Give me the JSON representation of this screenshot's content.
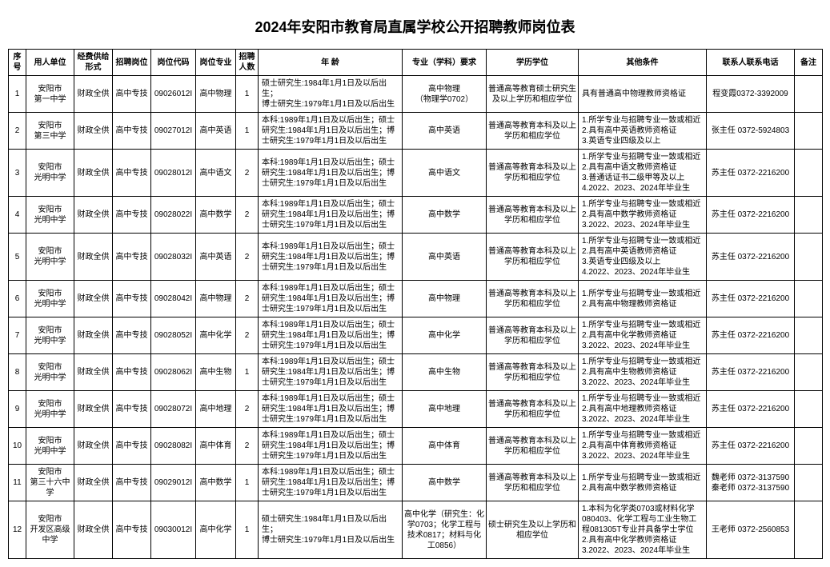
{
  "title": "2024年安阳市教育局直属学校公开招聘教师岗位表",
  "title_fontsize": "18px",
  "body_fontsize": "10px",
  "columns": [
    "序号",
    "用人单位",
    "经费供给形式",
    "招聘岗位",
    "岗位代码",
    "岗位专业",
    "招聘人数",
    "年 龄",
    "专业（学科）要求",
    "学历学位",
    "其他条件",
    "联系人联系电话",
    "备注"
  ],
  "rows": [
    {
      "seq": "1",
      "unit": "安阳市\n第一中学",
      "fund": "财政全供",
      "post": "高中专技",
      "code": "09026012I",
      "major": "高中物理",
      "num": "1",
      "age": "硕士研究生:1984年1月1日及以后出生；\n博士研究生:1979年1月1日及以后出生",
      "req": "高中物理\n（物理学0702）",
      "edu": "普通高等教育硕士研究生及以上学历和相应学位",
      "other": "具有普通高中物理教师资格证",
      "contact": "程变霞0372-3392009",
      "remark": ""
    },
    {
      "seq": "2",
      "unit": "安阳市\n第三中学",
      "fund": "财政全供",
      "post": "高中专技",
      "code": "09027012I",
      "major": "高中英语",
      "num": "1",
      "age": "本科:1989年1月1日及以后出生；硕士研究生:1984年1月1日及以后出生；博士研究生:1979年1月1日及以后出生",
      "req": "高中英语",
      "edu": "普通高等教育本科及以上学历和相应学位",
      "other": "1.所学专业与招聘专业一致或相近\n2.具有高中英语教师资格证\n3.英语专业四级及以上",
      "contact": "张主任 0372-5924803",
      "remark": ""
    },
    {
      "seq": "3",
      "unit": "安阳市\n光明中学",
      "fund": "财政全供",
      "post": "高中专技",
      "code": "09028012I",
      "major": "高中语文",
      "num": "2",
      "age": "本科:1989年1月1日及以后出生；硕士研究生:1984年1月1日及以后出生；博士研究生:1979年1月1日及以后出生",
      "req": "高中语文",
      "edu": "普通高等教育本科及以上学历和相应学位",
      "other": "1.所学专业与招聘专业一致或相近\n2.具有高中语文教师资格证\n3.普通话证书二级甲等及以上\n4.2022、2023、2024年毕业生",
      "contact": "苏主任 0372-2216200",
      "remark": ""
    },
    {
      "seq": "4",
      "unit": "安阳市\n光明中学",
      "fund": "财政全供",
      "post": "高中专技",
      "code": "09028022I",
      "major": "高中数学",
      "num": "2",
      "age": "本科:1989年1月1日及以后出生；硕士研究生:1984年1月1日及以后出生；博士研究生:1979年1月1日及以后出生",
      "req": "高中数学",
      "edu": "普通高等教育本科及以上学历和相应学位",
      "other": "1.所学专业与招聘专业一致或相近\n2.具有高中数学教师资格证\n3.2022、2023、2024年毕业生",
      "contact": "苏主任 0372-2216200",
      "remark": ""
    },
    {
      "seq": "5",
      "unit": "安阳市\n光明中学",
      "fund": "财政全供",
      "post": "高中专技",
      "code": "09028032I",
      "major": "高中英语",
      "num": "2",
      "age": "本科:1989年1月1日及以后出生；硕士研究生:1984年1月1日及以后出生；博士研究生:1979年1月1日及以后出生",
      "req": "高中英语",
      "edu": "普通高等教育本科及以上学历和相应学位",
      "other": "1.所学专业与招聘专业一致或相近\n2.具有高中英语教师资格证\n3.英语专业四级及以上\n4.2022、2023、2024年毕业生",
      "contact": "苏主任 0372-2216200",
      "remark": ""
    },
    {
      "seq": "6",
      "unit": "安阳市\n光明中学",
      "fund": "财政全供",
      "post": "高中专技",
      "code": "09028042I",
      "major": "高中物理",
      "num": "2",
      "age": "本科:1989年1月1日及以后出生；硕士研究生:1984年1月1日及以后出生；博士研究生:1979年1月1日及以后出生",
      "req": "高中物理",
      "edu": "普通高等教育本科及以上学历和相应学位",
      "other": "1.所学专业与招聘专业一致或相近\n2.具有高中物理教师资格证",
      "contact": "苏主任 0372-2216200",
      "remark": ""
    },
    {
      "seq": "7",
      "unit": "安阳市\n光明中学",
      "fund": "财政全供",
      "post": "高中专技",
      "code": "09028052I",
      "major": "高中化学",
      "num": "2",
      "age": "本科:1989年1月1日及以后出生；硕士研究生:1984年1月1日及以后出生；博士研究生:1979年1月1日及以后出生",
      "req": "高中化学",
      "edu": "普通高等教育本科及以上学历和相应学位",
      "other": "1.所学专业与招聘专业一致或相近\n2.具有高中化学教师资格证\n3.2022、2023、2024年毕业生",
      "contact": "苏主任 0372-2216200",
      "remark": ""
    },
    {
      "seq": "8",
      "unit": "安阳市\n光明中学",
      "fund": "财政全供",
      "post": "高中专技",
      "code": "09028062I",
      "major": "高中生物",
      "num": "1",
      "age": "本科:1989年1月1日及以后出生；硕士研究生:1984年1月1日及以后出生；博士研究生:1979年1月1日及以后出生",
      "req": "高中生物",
      "edu": "普通高等教育本科及以上学历和相应学位",
      "other": "1.所学专业与招聘专业一致或相近\n2.具有高中生物教师资格证\n3.2022、2023、2024年毕业生",
      "contact": "苏主任 0372-2216200",
      "remark": ""
    },
    {
      "seq": "9",
      "unit": "安阳市\n光明中学",
      "fund": "财政全供",
      "post": "高中专技",
      "code": "09028072I",
      "major": "高中地理",
      "num": "2",
      "age": "本科:1989年1月1日及以后出生；硕士研究生:1984年1月1日及以后出生；博士研究生:1979年1月1日及以后出生",
      "req": "高中地理",
      "edu": "普通高等教育本科及以上学历和相应学位",
      "other": "1.所学专业与招聘专业一致或相近\n2.具有高中地理教师资格证\n3.2022、2023、2024年毕业生",
      "contact": "苏主任 0372-2216200",
      "remark": ""
    },
    {
      "seq": "10",
      "unit": "安阳市\n光明中学",
      "fund": "财政全供",
      "post": "高中专技",
      "code": "09028082I",
      "major": "高中体育",
      "num": "2",
      "age": "本科:1989年1月1日及以后出生；硕士研究生:1984年1月1日及以后出生；博士研究生:1979年1月1日及以后出生",
      "req": "高中体育",
      "edu": "普通高等教育本科及以上学历和相应学位",
      "other": "1.所学专业与招聘专业一致或相近\n2.具有高中体育教师资格证\n3.2022、2023、2024年毕业生",
      "contact": "苏主任 0372-2216200",
      "remark": ""
    },
    {
      "seq": "11",
      "unit": "安阳市\n第三十六中学",
      "fund": "财政全供",
      "post": "高中专技",
      "code": "09029012I",
      "major": "高中数学",
      "num": "1",
      "age": "本科:1989年1月1日及以后出生；硕士研究生:1984年1月1日及以后出生；博士研究生:1979年1月1日及以后出生",
      "req": "高中数学",
      "edu": "普通高等教育本科及以上学历和相应学位",
      "other": "1.所学专业与招聘专业一致或相近\n2.具有高中数学教师资格证",
      "contact": "魏老师 0372-3137590\n秦老师 0372-3137590",
      "remark": ""
    },
    {
      "seq": "12",
      "unit": "安阳市\n开发区高级中学",
      "fund": "财政全供",
      "post": "高中专技",
      "code": "09030012I",
      "major": "高中化学",
      "num": "1",
      "age": "硕士研究生:1984年1月1日及以后出生；\n博士研究生:1979年1月1日及以后出生",
      "req": "高中化学（研究生：化学0703；化学工程与技术0817；材料与化工0856）",
      "edu": "硕士研究生及以上学历和相应学位",
      "other": "1.本科为化学类0703或材料化学080403、化学工程与工业生物工程081305T专业并具备学士学位\n2.具有高中化学教师资格证\n3.2022、2023、2024年毕业生",
      "contact": "王老师 0372-2560853",
      "remark": ""
    }
  ]
}
